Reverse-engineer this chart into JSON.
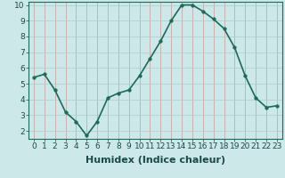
{
  "x": [
    0,
    1,
    2,
    3,
    4,
    5,
    6,
    7,
    8,
    9,
    10,
    11,
    12,
    13,
    14,
    15,
    16,
    17,
    18,
    19,
    20,
    21,
    22,
    23
  ],
  "y": [
    5.4,
    5.6,
    4.6,
    3.2,
    2.6,
    1.7,
    2.6,
    4.1,
    4.4,
    4.6,
    5.5,
    6.6,
    7.7,
    9.0,
    10.0,
    10.0,
    9.6,
    9.1,
    8.5,
    7.3,
    5.5,
    4.1,
    3.5,
    3.6
  ],
  "line_color": "#1a6b5a",
  "marker_color": "#1a6b5a",
  "bg_color": "#cce8e8",
  "grid_color": "#cc9999",
  "grid_color2": "#aacccc",
  "xlabel": "Humidex (Indice chaleur)",
  "ylim": [
    1.5,
    10.2
  ],
  "xlim": [
    -0.5,
    23.5
  ],
  "yticks": [
    2,
    3,
    4,
    5,
    6,
    7,
    8,
    9,
    10
  ],
  "xticks": [
    0,
    1,
    2,
    3,
    4,
    5,
    6,
    7,
    8,
    9,
    10,
    11,
    12,
    13,
    14,
    15,
    16,
    17,
    18,
    19,
    20,
    21,
    22,
    23
  ],
  "tick_fontsize": 6.5,
  "xlabel_fontsize": 8,
  "linewidth": 1.2,
  "markersize": 2.5
}
